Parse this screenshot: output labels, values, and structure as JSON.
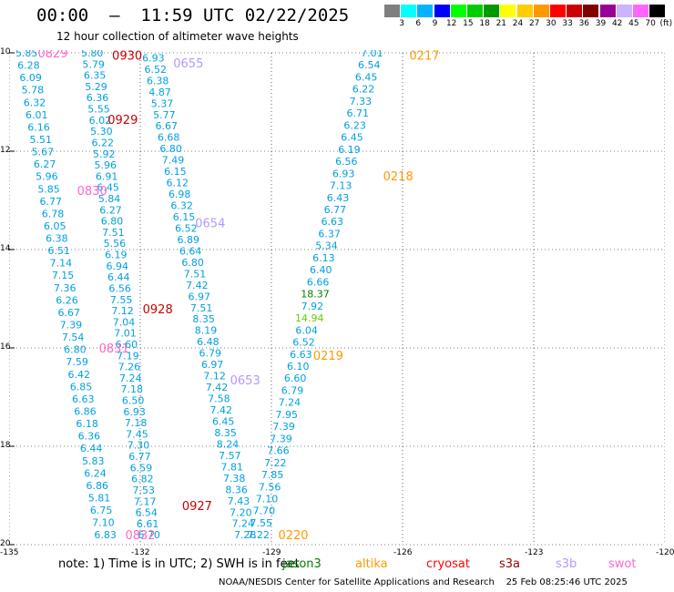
{
  "header": {
    "title": "00:00  –  11:59 UTC 02/22/2025",
    "subtitle": "12 hour collection of altimeter wave heights"
  },
  "legend": {
    "colors": [
      "#7f7f7f",
      "#00ffff",
      "#00b4ff",
      "#0000ff",
      "#00ff00",
      "#00cc00",
      "#009900",
      "#ffff00",
      "#ffcc00",
      "#ff9900",
      "#ff0000",
      "#cc0000",
      "#800000",
      "#990099",
      "#ccb3ff",
      "#ff66ff",
      "#000000"
    ],
    "labels": [
      "3",
      "6",
      "9",
      "12",
      "15",
      "18",
      "21",
      "24",
      "27",
      "30",
      "33",
      "36",
      "39",
      "42",
      "45",
      "70",
      "(ft)"
    ]
  },
  "axes": {
    "lon_labels": [
      "-135",
      "-132",
      "-129",
      "-126",
      "-123",
      "-120"
    ],
    "lon_values": [
      -135,
      -132,
      -129,
      -126,
      -123,
      -120
    ],
    "lat_labels": [
      "10",
      "12",
      "14",
      "16",
      "18",
      "20"
    ],
    "lat_values": [
      10,
      12,
      14,
      16,
      18,
      20
    ]
  },
  "map_data": {
    "colors": {
      "altika_label": "#ff9900",
      "s3a_label": "#cc0000",
      "s3b_label": "#b399ff",
      "swot_label": "#ff66cc",
      "wave": "#00a0e0",
      "green": "#008000",
      "lgreen": "#66cc00"
    },
    "tracks": [
      {
        "values": [
          "5.85",
          "6.28",
          "6.09",
          "5.78",
          "6.32",
          "6.01",
          "6.16",
          "5.51",
          "5.67",
          "6.27",
          "5.96",
          "5.85",
          "6.77",
          "6.78",
          "6.05",
          "6.38",
          "6.51",
          "7.14",
          "7.15",
          "7.36",
          "6.26",
          "6.67",
          "7.39",
          "7.54",
          "6.80",
          "7.59",
          "6.42",
          "6.85",
          "6.63",
          "6.86",
          "6.18",
          "6.36",
          "6.44",
          "5.83",
          "6.24",
          "6.86",
          "5.81",
          "6.75",
          "7.10",
          "6.83"
        ],
        "lon_start": -134.6,
        "lat_start": 10.0,
        "lon_end": -132.8,
        "lat_end": 19.8
      },
      {
        "values": [
          "5.80",
          "5.79",
          "6.35",
          "5.29",
          "6.36",
          "5.55",
          "6.02",
          "5.30",
          "6.22",
          "5.92",
          "5.96",
          "6.91",
          "6.45",
          "5.84",
          "6.27",
          "6.80",
          "7.51",
          "5.56",
          "6.19",
          "6.94",
          "6.44",
          "6.56",
          "7.55",
          "7.12",
          "7.04",
          "7.01",
          "6.60",
          "7.19",
          "7.26",
          "7.24",
          "7.18",
          "6.50",
          "6.93",
          "7.18",
          "7.45",
          "7.30",
          "6.77",
          "6.59",
          "6.82",
          "7.53",
          "7.17",
          "6.54",
          "6.61",
          "6.70"
        ],
        "lon_start": -133.1,
        "lat_start": 10.0,
        "lon_end": -131.8,
        "lat_end": 19.8
      },
      {
        "values": [
          "6.93",
          "6.52",
          "6.38",
          "4.87",
          "5.37",
          "5.77",
          "6.67",
          "6.68",
          "6.80",
          "7.49",
          "6.15",
          "6.12",
          "6.98",
          "6.32",
          "6.15",
          "6.52",
          "6.89",
          "6.64",
          "6.80",
          "7.51",
          "7.42",
          "6.97",
          "7.51",
          "8.35",
          "8.19",
          "6.48",
          "6.79",
          "6.97",
          "7.12",
          "7.42",
          "7.58",
          "7.42",
          "6.45",
          "8.35",
          "8.24",
          "7.57",
          "7.81",
          "7.38",
          "8.36",
          "7.43",
          "7.20",
          "7.24",
          "7.28"
        ],
        "lon_start": -131.7,
        "lat_start": 10.1,
        "lon_end": -129.6,
        "lat_end": 19.8
      },
      {
        "values": [
          "7.01",
          "6.54",
          "6.45",
          "6.22",
          "7.33",
          "6.71",
          "6.23",
          "6.45",
          "6.19",
          "6.56",
          "6.93",
          "7.13",
          "6.43",
          "6.77",
          "6.63",
          "6.37",
          "5.34",
          "6.13",
          "6.40",
          "6.66",
          "18.37",
          "7.92",
          "14.94",
          "6.04",
          "6.52",
          "6.63",
          "6.10",
          "6.60",
          "6.79",
          "7.24",
          "7.95",
          "7.39",
          "7.39",
          "7.66",
          "7.22",
          "7.85",
          "7.56",
          "7.10",
          "7.70",
          "7.55",
          "7.22"
        ],
        "lon_start": -126.7,
        "lat_start": 10.0,
        "lon_end": -129.3,
        "lat_end": 19.8
      }
    ],
    "time_labels": [
      {
        "text": "0829",
        "sat": "swot",
        "lon": -134.0,
        "lat": 10.0
      },
      {
        "text": "0930",
        "sat": "s3a",
        "lon": -132.3,
        "lat": 10.05
      },
      {
        "text": "0655",
        "sat": "s3b",
        "lon": -130.9,
        "lat": 10.2
      },
      {
        "text": "0929",
        "sat": "s3a",
        "lon": -132.4,
        "lat": 11.35
      },
      {
        "text": "0830",
        "sat": "swot",
        "lon": -133.1,
        "lat": 12.8
      },
      {
        "text": "0654",
        "sat": "s3b",
        "lon": -130.4,
        "lat": 13.45
      },
      {
        "text": "0928",
        "sat": "s3a",
        "lon": -131.6,
        "lat": 15.2
      },
      {
        "text": "0831",
        "sat": "swot",
        "lon": -132.6,
        "lat": 16.0
      },
      {
        "text": "0653",
        "sat": "s3b",
        "lon": -129.6,
        "lat": 16.65
      },
      {
        "text": "0927",
        "sat": "s3a",
        "lon": -130.7,
        "lat": 19.2
      },
      {
        "text": "0832",
        "sat": "swot",
        "lon": -132.0,
        "lat": 19.8
      },
      {
        "text": "0217",
        "sat": "altika",
        "lon": -125.5,
        "lat": 10.05
      },
      {
        "text": "0218",
        "sat": "altika",
        "lon": -126.1,
        "lat": 12.5
      },
      {
        "text": "0219",
        "sat": "altika",
        "lon": -127.7,
        "lat": 16.15
      },
      {
        "text": "0220",
        "sat": "altika",
        "lon": -128.5,
        "lat": 19.8
      }
    ]
  },
  "footer": {
    "note": "note:  1) Time is in UTC; 2) SWH is in feet",
    "satellites": [
      {
        "name": "jason3",
        "color": "#008000"
      },
      {
        "name": "altika",
        "color": "#ff9900"
      },
      {
        "name": "cryosat",
        "color": "#ff0000"
      },
      {
        "name": "s3a",
        "color": "#990000"
      },
      {
        "name": "s3b",
        "color": "#b399ff"
      },
      {
        "name": "swot",
        "color": "#ff66cc"
      }
    ],
    "credit": "NOAA/NESDIS Center for Satellite Applications and Research    25 Feb 08:25:46 UTC 2025"
  }
}
